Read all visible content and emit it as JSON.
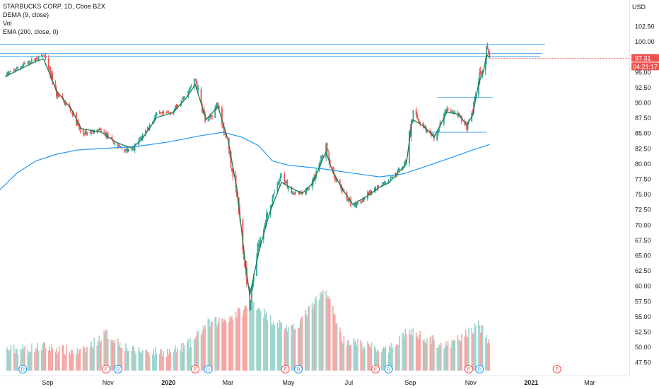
{
  "legend": {
    "symbol": "STARBUCKS CORP, 1D, Cboe BZX",
    "dema": "DEMA (9, close)",
    "vol": "Vol",
    "ema": "EMA (200, close, 0)"
  },
  "axis": {
    "currency": "USD",
    "price_tag": "97.31",
    "countdown": "04:21:17"
  },
  "colors": {
    "up": "#26a69a",
    "down": "#ef5350",
    "vol_up": "#9ed6cf",
    "vol_down": "#f5a6a4",
    "ema": "#2196f3",
    "dema": "#1b7a4f",
    "hline": "#42a5f5",
    "price_tag": "#ef5350",
    "earn_badge": "#ef5350",
    "div_badge": "#2196f3"
  },
  "chart_data": {
    "type": "candlestick",
    "title": "STARBUCKS CORP, 1D, Cboe BZX",
    "ylim": [
      45.5,
      106.5
    ],
    "yticks": [
      "102.50",
      "100.00",
      "97.50",
      "95.00",
      "92.50",
      "90.00",
      "87.50",
      "85.00",
      "82.50",
      "80.00",
      "77.50",
      "75.00",
      "72.50",
      "70.00",
      "67.50",
      "65.00",
      "62.50",
      "60.00",
      "57.50",
      "55.00",
      "52.50",
      "50.00",
      "47.50"
    ],
    "ytick_values": [
      102.5,
      100,
      97.5,
      95,
      92.5,
      90,
      87.5,
      85,
      82.5,
      80,
      77.5,
      75,
      72.5,
      70,
      67.5,
      65,
      62.5,
      60,
      57.5,
      55,
      52.5,
      50,
      47.5
    ],
    "xticks": [
      {
        "label": "Sep",
        "x": "2019-09-01",
        "bold": false
      },
      {
        "label": "Nov",
        "x": "2019-11-01",
        "bold": false
      },
      {
        "label": "2020",
        "x": "2020-01-01",
        "bold": true
      },
      {
        "label": "Mar",
        "x": "2020-03-01",
        "bold": false
      },
      {
        "label": "May",
        "x": "2020-05-01",
        "bold": false
      },
      {
        "label": "Jul",
        "x": "2020-07-01",
        "bold": false
      },
      {
        "label": "Sep",
        "x": "2020-09-01",
        "bold": false
      },
      {
        "label": "Nov",
        "x": "2020-11-01",
        "bold": false
      },
      {
        "label": "2021",
        "x": "2021-01-01",
        "bold": true
      },
      {
        "label": "Mar",
        "x": "2021-03-01",
        "bold": false
      }
    ],
    "last_price": 97.31,
    "price_path": [
      [
        "2019-07-20",
        94.5
      ],
      [
        "2019-08-05",
        96.0
      ],
      [
        "2019-08-20",
        97.2
      ],
      [
        "2019-08-28",
        97.8
      ],
      [
        "2019-09-10",
        91.5
      ],
      [
        "2019-09-25",
        88.8
      ],
      [
        "2019-10-05",
        85.0
      ],
      [
        "2019-10-25",
        85.5
      ],
      [
        "2019-11-10",
        83.0
      ],
      [
        "2019-11-25",
        82.0
      ],
      [
        "2019-12-05",
        84.5
      ],
      [
        "2019-12-20",
        88.0
      ],
      [
        "2020-01-05",
        88.5
      ],
      [
        "2020-01-18",
        91.0
      ],
      [
        "2020-01-28",
        93.8
      ],
      [
        "2020-02-08",
        86.5
      ],
      [
        "2020-02-20",
        90.0
      ],
      [
        "2020-03-01",
        83.0
      ],
      [
        "2020-03-10",
        75.0
      ],
      [
        "2020-03-18",
        63.0
      ],
      [
        "2020-03-23",
        57.0
      ],
      [
        "2020-04-01",
        67.0
      ],
      [
        "2020-04-12",
        73.0
      ],
      [
        "2020-04-24",
        78.0
      ],
      [
        "2020-05-05",
        75.5
      ],
      [
        "2020-05-15",
        75.0
      ],
      [
        "2020-05-25",
        77.0
      ],
      [
        "2020-06-08",
        83.0
      ],
      [
        "2020-06-15",
        78.0
      ],
      [
        "2020-06-25",
        75.5
      ],
      [
        "2020-07-05",
        73.0
      ],
      [
        "2020-07-20",
        75.0
      ],
      [
        "2020-08-01",
        76.5
      ],
      [
        "2020-08-10",
        77.0
      ],
      [
        "2020-08-20",
        79.0
      ],
      [
        "2020-08-28",
        80.5
      ],
      [
        "2020-09-03",
        88.5
      ],
      [
        "2020-09-15",
        86.0
      ],
      [
        "2020-09-25",
        84.0
      ],
      [
        "2020-10-08",
        89.0
      ],
      [
        "2020-10-20",
        88.0
      ],
      [
        "2020-10-28",
        86.0
      ],
      [
        "2020-11-03",
        88.5
      ],
      [
        "2020-11-09",
        94.0
      ],
      [
        "2020-11-14",
        95.5
      ],
      [
        "2020-11-17",
        98.5
      ],
      [
        "2020-11-20",
        97.3
      ]
    ],
    "dema_path": [
      [
        "2019-07-20",
        94.3
      ],
      [
        "2019-08-20",
        96.8
      ],
      [
        "2019-08-28",
        97.2
      ],
      [
        "2019-09-10",
        92.0
      ],
      [
        "2019-09-25",
        89.0
      ],
      [
        "2019-10-05",
        85.8
      ],
      [
        "2019-10-25",
        85.2
      ],
      [
        "2019-11-10",
        83.5
      ],
      [
        "2019-11-25",
        82.6
      ],
      [
        "2019-12-05",
        84.0
      ],
      [
        "2019-12-20",
        87.6
      ],
      [
        "2020-01-05",
        88.4
      ],
      [
        "2020-01-18",
        90.6
      ],
      [
        "2020-01-28",
        93.0
      ],
      [
        "2020-02-08",
        87.3
      ],
      [
        "2020-02-20",
        89.4
      ],
      [
        "2020-03-01",
        84.0
      ],
      [
        "2020-03-10",
        76.0
      ],
      [
        "2020-03-18",
        64.5
      ],
      [
        "2020-03-23",
        58.5
      ],
      [
        "2020-04-01",
        65.5
      ],
      [
        "2020-04-12",
        72.0
      ],
      [
        "2020-04-24",
        77.0
      ],
      [
        "2020-05-05",
        76.0
      ],
      [
        "2020-05-15",
        75.2
      ],
      [
        "2020-05-25",
        76.8
      ],
      [
        "2020-06-08",
        82.0
      ],
      [
        "2020-06-15",
        78.6
      ],
      [
        "2020-06-25",
        75.8
      ],
      [
        "2020-07-05",
        73.4
      ],
      [
        "2020-07-20",
        74.8
      ],
      [
        "2020-08-01",
        76.2
      ],
      [
        "2020-08-10",
        76.9
      ],
      [
        "2020-08-20",
        78.6
      ],
      [
        "2020-08-28",
        80.0
      ],
      [
        "2020-09-03",
        87.3
      ],
      [
        "2020-09-15",
        86.2
      ],
      [
        "2020-09-25",
        84.4
      ],
      [
        "2020-10-08",
        88.5
      ],
      [
        "2020-10-20",
        88.1
      ],
      [
        "2020-10-28",
        86.4
      ],
      [
        "2020-11-03",
        88.0
      ],
      [
        "2020-11-09",
        93.2
      ],
      [
        "2020-11-14",
        95.3
      ],
      [
        "2020-11-17",
        97.9
      ],
      [
        "2020-11-20",
        97.4
      ]
    ],
    "ema200_path": [
      [
        "2019-07-15",
        75.8
      ],
      [
        "2019-08-01",
        78.5
      ],
      [
        "2019-08-20",
        80.5
      ],
      [
        "2019-09-10",
        81.6
      ],
      [
        "2019-10-01",
        82.3
      ],
      [
        "2019-11-01",
        82.6
      ],
      [
        "2019-12-01",
        82.9
      ],
      [
        "2020-01-01",
        83.6
      ],
      [
        "2020-02-01",
        84.6
      ],
      [
        "2020-02-25",
        85.2
      ],
      [
        "2020-03-15",
        84.4
      ],
      [
        "2020-04-01",
        83.0
      ],
      [
        "2020-04-15",
        80.5
      ],
      [
        "2020-05-01",
        79.8
      ],
      [
        "2020-06-01",
        79.3
      ],
      [
        "2020-07-01",
        78.6
      ],
      [
        "2020-08-01",
        77.9
      ],
      [
        "2020-08-25",
        78.4
      ],
      [
        "2020-09-20",
        79.8
      ],
      [
        "2020-10-15",
        81.2
      ],
      [
        "2020-11-01",
        82.2
      ],
      [
        "2020-11-20",
        83.2
      ]
    ],
    "volume_path": [
      [
        "2019-07-20",
        49.3
      ],
      [
        "2019-08-28",
        49.8
      ],
      [
        "2019-10-05",
        48.9
      ],
      [
        "2019-10-30",
        52.0
      ],
      [
        "2019-11-25",
        49.2
      ],
      [
        "2020-01-05",
        49.0
      ],
      [
        "2020-01-25",
        50.5
      ],
      [
        "2020-02-08",
        53.5
      ],
      [
        "2020-03-01",
        54.5
      ],
      [
        "2020-03-18",
        56.0
      ],
      [
        "2020-03-25",
        57.5
      ],
      [
        "2020-04-12",
        54.5
      ],
      [
        "2020-05-05",
        52.5
      ],
      [
        "2020-06-08",
        59.2
      ],
      [
        "2020-06-25",
        51.0
      ],
      [
        "2020-07-20",
        50.0
      ],
      [
        "2020-08-10",
        49.0
      ],
      [
        "2020-08-28",
        52.5
      ],
      [
        "2020-09-15",
        51.5
      ],
      [
        "2020-10-08",
        49.8
      ],
      [
        "2020-10-28",
        52.0
      ],
      [
        "2020-11-09",
        53.5
      ],
      [
        "2020-11-20",
        50.5
      ]
    ],
    "horizontal_lines": [
      {
        "y": 99.6,
        "from": "2019-07-15",
        "to": "2021-01-15"
      },
      {
        "y": 98.1,
        "from": "2019-07-15",
        "to": "2021-01-12"
      },
      {
        "y": 97.6,
        "from": "2019-07-15",
        "to": "2021-01-10"
      },
      {
        "y": 90.9,
        "from": "2020-09-28",
        "to": "2020-11-23"
      },
      {
        "y": 85.2,
        "from": "2020-09-20",
        "to": "2020-11-17"
      }
    ],
    "events": [
      {
        "type": "D",
        "x": "2019-08-07"
      },
      {
        "type": "E",
        "x": "2019-10-30"
      },
      {
        "type": "D",
        "x": "2019-11-11"
      },
      {
        "type": "E",
        "x": "2020-01-28"
      },
      {
        "type": "D",
        "x": "2020-02-10"
      },
      {
        "type": "E",
        "x": "2020-04-28"
      },
      {
        "type": "D",
        "x": "2020-05-11"
      },
      {
        "type": "E",
        "x": "2020-07-28"
      },
      {
        "type": "D",
        "x": "2020-08-10"
      },
      {
        "type": "E",
        "x": "2020-10-30"
      },
      {
        "type": "D",
        "x": "2020-11-10"
      },
      {
        "type": "E",
        "x": "2021-01-27"
      }
    ]
  }
}
